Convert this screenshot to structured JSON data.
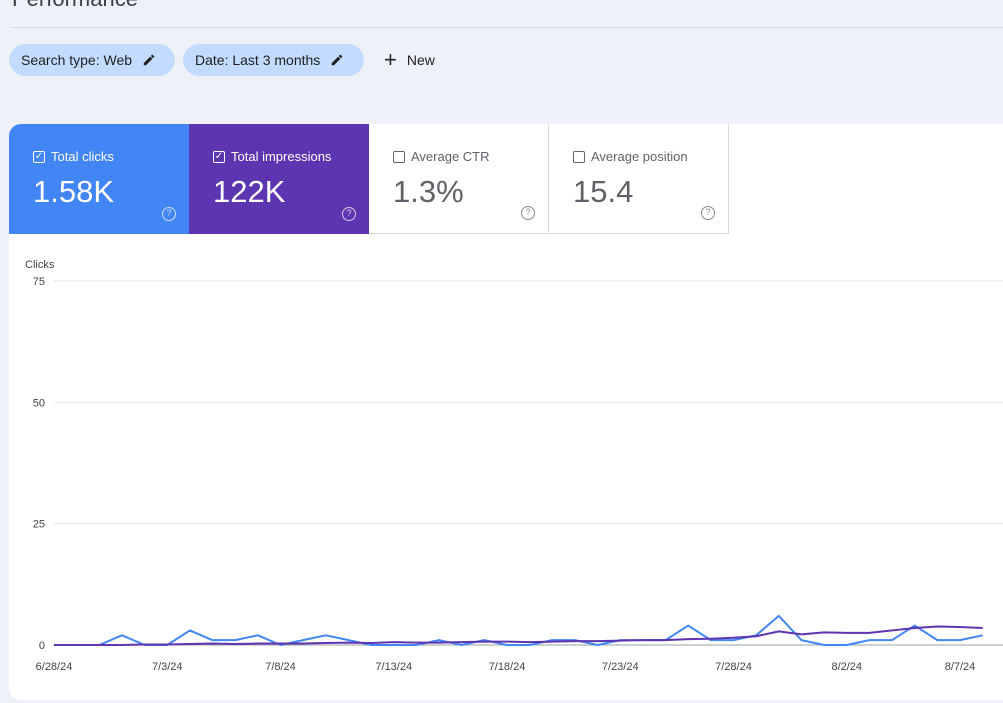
{
  "page": {
    "title": "Performance"
  },
  "filters": {
    "search_type": "Search type: Web",
    "date": "Date: Last 3 months",
    "new_label": "New"
  },
  "metrics": [
    {
      "label": "Total clicks",
      "value": "1.58K",
      "checked": true,
      "color": "#4285f4"
    },
    {
      "label": "Total impressions",
      "value": "122K",
      "checked": true,
      "color": "#5e35b1"
    },
    {
      "label": "Average CTR",
      "value": "1.3%",
      "checked": false,
      "color": "#ffffff"
    },
    {
      "label": "Average position",
      "value": "15.4",
      "checked": false,
      "color": "#ffffff"
    }
  ],
  "icons": {
    "edit": "pencil-icon",
    "add": "plus-icon",
    "help": "help-circle-icon",
    "checkbox": "checkbox-icon"
  },
  "chart_data": {
    "type": "line",
    "ylabel": "Clicks",
    "ylim": [
      0,
      75
    ],
    "yticks": [
      0,
      25,
      50,
      75
    ],
    "grid": true,
    "xtick_labels": [
      "6/28/24",
      "7/3/24",
      "7/8/24",
      "7/13/24",
      "7/18/24",
      "7/23/24",
      "7/28/24",
      "8/2/24",
      "8/7/24"
    ],
    "x": [
      "6/28",
      "6/29",
      "6/30",
      "7/1",
      "7/2",
      "7/3",
      "7/4",
      "7/5",
      "7/6",
      "7/7",
      "7/8",
      "7/9",
      "7/10",
      "7/11",
      "7/12",
      "7/13",
      "7/14",
      "7/15",
      "7/16",
      "7/17",
      "7/18",
      "7/19",
      "7/20",
      "7/21",
      "7/22",
      "7/23",
      "7/24",
      "7/25",
      "7/26",
      "7/27",
      "7/28",
      "7/29",
      "7/30",
      "7/31",
      "8/1",
      "8/2",
      "8/3",
      "8/4",
      "8/5",
      "8/6",
      "8/7",
      "8/8"
    ],
    "series": [
      {
        "color": "#4285f4",
        "values": [
          0,
          0,
          0,
          2,
          0,
          0,
          3,
          1,
          1,
          2,
          0,
          1,
          2,
          1,
          0,
          0,
          0,
          1,
          0,
          1,
          0,
          0,
          1,
          1,
          0,
          1,
          1,
          1,
          4,
          1,
          1,
          2,
          6,
          1,
          0,
          0,
          1,
          1,
          4,
          1,
          1,
          2
        ]
      },
      {
        "color": "#5e35b1",
        "values": [
          0,
          0,
          0,
          0,
          0.1,
          0.1,
          0.2,
          0.3,
          0.2,
          0.3,
          0.3,
          0.3,
          0.4,
          0.5,
          0.4,
          0.6,
          0.5,
          0.5,
          0.6,
          0.7,
          0.7,
          0.6,
          0.7,
          0.8,
          0.8,
          0.9,
          1.0,
          1.0,
          1.2,
          1.3,
          1.5,
          1.8,
          2.8,
          2.2,
          2.6,
          2.5,
          2.5,
          3.0,
          3.5,
          3.8,
          3.7,
          3.5
        ]
      }
    ]
  }
}
